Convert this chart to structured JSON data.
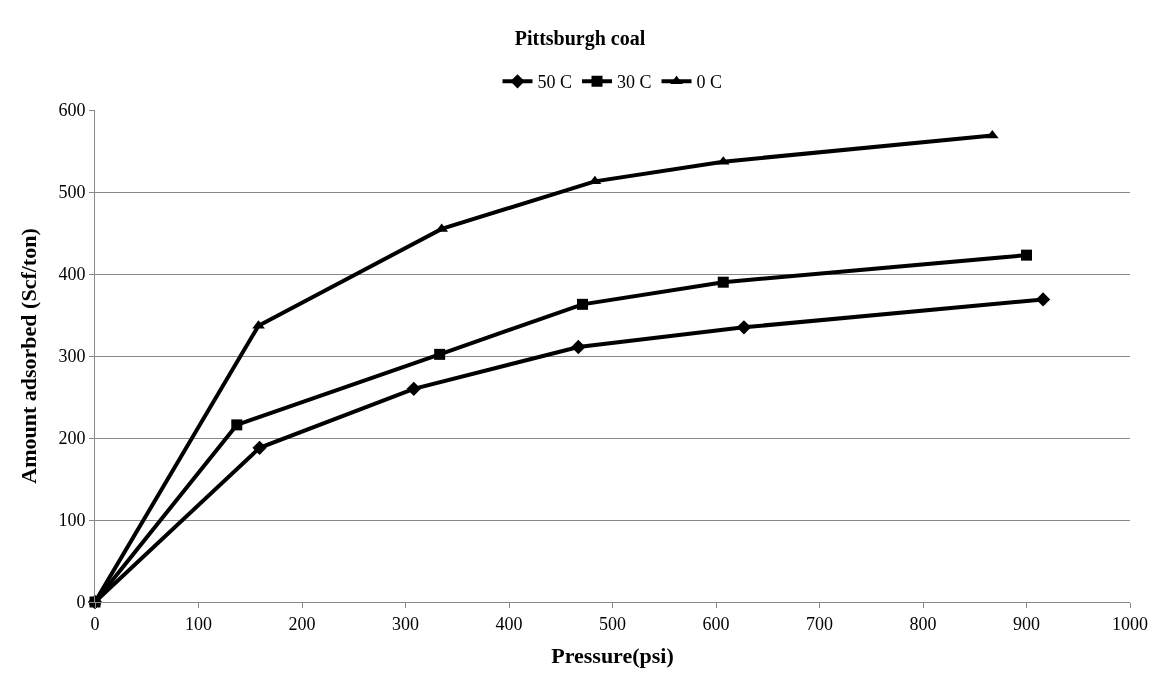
{
  "chart_data": {
    "type": "line",
    "title": "Pittsburgh coal",
    "xlabel": "Pressure(psi)",
    "ylabel": "Amount adsorbed (Scf/ton)",
    "xlim": [
      0,
      1000
    ],
    "xticks": [
      0,
      100,
      200,
      300,
      400,
      500,
      600,
      700,
      800,
      900,
      1000
    ],
    "ylim": [
      0,
      600
    ],
    "yticks": [
      0,
      100,
      200,
      300,
      400,
      500,
      600
    ],
    "grid": "y",
    "legend": "top",
    "line_style": "solid",
    "series": [
      {
        "name": "50 C",
        "color": "#000000",
        "marker": "diamond",
        "x": [
          0,
          159,
          308,
          467,
          627,
          916
        ],
        "values": [
          0,
          188,
          260,
          311,
          335,
          369
        ]
      },
      {
        "name": "30 C",
        "color": "#000000",
        "marker": "square",
        "x": [
          0,
          137,
          333,
          471,
          607,
          900
        ],
        "values": [
          0,
          216,
          302,
          363,
          390,
          423
        ]
      },
      {
        "name": "0 C",
        "color": "#000000",
        "marker": "triangle",
        "x": [
          0,
          158,
          335,
          483,
          607,
          867
        ],
        "values": [
          0,
          337,
          455,
          513,
          537,
          569
        ]
      }
    ]
  }
}
